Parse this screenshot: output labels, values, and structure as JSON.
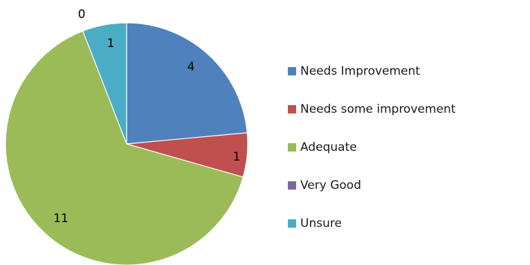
{
  "chart_data": {
    "type": "pie",
    "title": "",
    "categories": [
      "Needs Improvement",
      "Needs some improvement",
      "Adequate",
      "Very Good",
      "Unsure"
    ],
    "values": [
      4,
      1,
      11,
      0,
      1
    ],
    "colors": [
      "#4F81BD",
      "#C0504D",
      "#9BBB59",
      "#8064A2",
      "#4BACC6"
    ],
    "data_labels": [
      "4",
      "1",
      "11",
      "0",
      "1"
    ],
    "legend_position": "right",
    "start_angle": "12 o'clock",
    "direction": "clockwise"
  }
}
